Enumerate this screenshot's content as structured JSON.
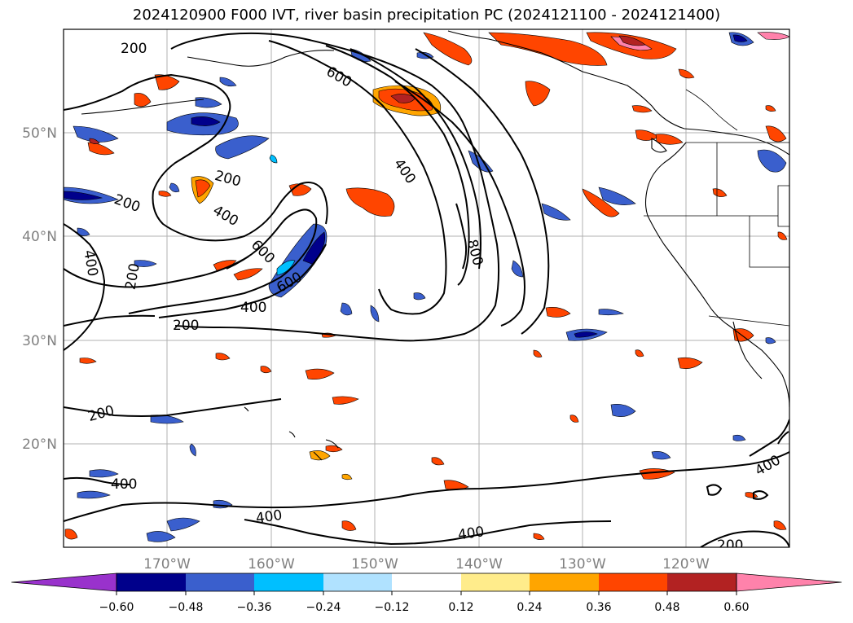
{
  "title": "2024120900 F000 IVT, river basin precipitation PC (2024121100 - 2024121400)",
  "axes": {
    "lon_labels": [
      "170°W",
      "160°W",
      "150°W",
      "140°W",
      "130°W",
      "120°W"
    ],
    "lat_labels": [
      "50°N",
      "40°N",
      "30°N",
      "20°N"
    ]
  },
  "contour_labels": [
    "200",
    "600",
    "400",
    "200",
    "200",
    "400",
    "400",
    "200",
    "600",
    "600",
    "400",
    "200",
    "800",
    "200",
    "400",
    "400",
    "400",
    "400",
    "200"
  ],
  "colorbar": {
    "ticks": [
      "−0.60",
      "−0.48",
      "−0.36",
      "−0.24",
      "−0.12",
      "0.12",
      "0.24",
      "0.36",
      "0.48",
      "0.60"
    ],
    "colors": [
      "#9932cc",
      "#00008b",
      "#3a5fcd",
      "#00bfff",
      "#b0e2ff",
      "#ffffff",
      "#ffec8b",
      "#ffa500",
      "#ff4500",
      "#b22222",
      "#ff82ab"
    ]
  }
}
